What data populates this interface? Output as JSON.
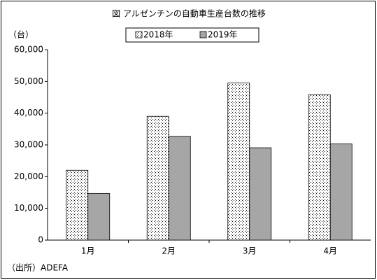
{
  "chart_data": {
    "type": "bar",
    "title": "図 アルゼンチンの自動車生産台数の推移",
    "y_axis_label": "（台）",
    "source": "（出所）ADEFA",
    "categories": [
      "1月",
      "2月",
      "3月",
      "4月"
    ],
    "series": [
      {
        "name": "2018年",
        "color": "#ffffff",
        "pattern": "dotted",
        "values": [
          22000,
          39000,
          49500,
          45800
        ]
      },
      {
        "name": "2019年",
        "color": "#a6a6a6",
        "values": [
          14700,
          32700,
          29100,
          30300
        ]
      }
    ],
    "ylim": [
      0,
      60000
    ],
    "yticks": [
      0,
      {
        "value": 10000,
        "label": "10,000"
      },
      {
        "value": 20000,
        "label": "20,000"
      },
      {
        "value": 30000,
        "label": "30,000"
      },
      {
        "value": 40000,
        "label": "40,000"
      },
      {
        "value": 50000,
        "label": "50,000"
      },
      {
        "value": 60000,
        "label": "60,000"
      }
    ],
    "grid": false,
    "legend": "top"
  }
}
